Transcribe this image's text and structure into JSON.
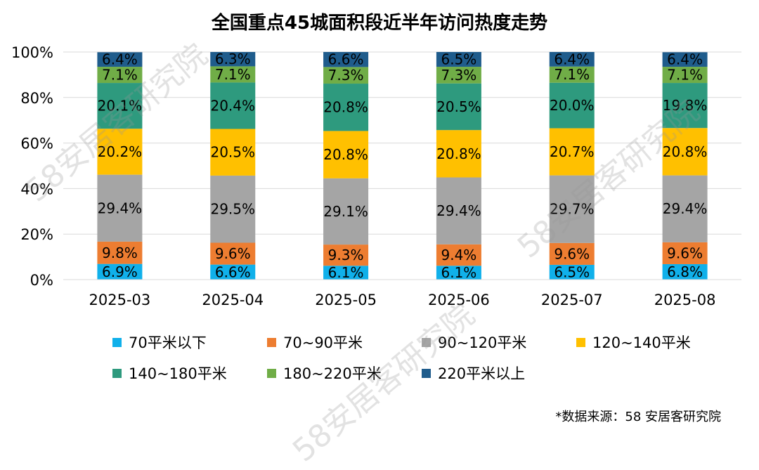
{
  "chart_data": {
    "type": "bar",
    "stacked": true,
    "title": "全国重点45城面积段近半年访问热度走势",
    "categories": [
      "2025-03",
      "2025-04",
      "2025-05",
      "2025-06",
      "2025-07",
      "2025-08"
    ],
    "y_ticks": [
      "0%",
      "20%",
      "40%",
      "60%",
      "80%",
      "100%"
    ],
    "ylim": [
      0,
      100
    ],
    "series": [
      {
        "name": "70平米以下",
        "color": "#10b0ea",
        "values": [
          6.9,
          6.6,
          6.1,
          6.1,
          6.5,
          6.8
        ],
        "labels": [
          "6.9%",
          "6.6%",
          "6.1%",
          "6.1%",
          "6.5%",
          "6.8%"
        ]
      },
      {
        "name": "70~90平米",
        "color": "#ed7d31",
        "values": [
          9.8,
          9.6,
          9.3,
          9.4,
          9.6,
          9.6
        ],
        "labels": [
          "9.8%",
          "9.6%",
          "9.3%",
          "9.4%",
          "9.6%",
          "9.6%"
        ]
      },
      {
        "name": "90~120平米",
        "color": "#a5a5a5",
        "values": [
          29.4,
          29.5,
          29.1,
          29.4,
          29.7,
          29.4
        ],
        "labels": [
          "29.4%",
          "29.5%",
          "29.1%",
          "29.4%",
          "29.7%",
          "29.4%"
        ]
      },
      {
        "name": "120~140平米",
        "color": "#ffc000",
        "values": [
          20.2,
          20.5,
          20.8,
          20.8,
          20.7,
          20.8
        ],
        "labels": [
          "20.2%",
          "20.5%",
          "20.8%",
          "20.8%",
          "20.7%",
          "20.8%"
        ]
      },
      {
        "name": "140~180平米",
        "color": "#2e9a7e",
        "values": [
          20.1,
          20.4,
          20.8,
          20.5,
          20.0,
          19.8
        ],
        "labels": [
          "20.1%",
          "20.4%",
          "20.8%",
          "20.5%",
          "20.0%",
          "19.8%"
        ]
      },
      {
        "name": "180~220平米",
        "color": "#70ad47",
        "values": [
          7.1,
          7.1,
          7.3,
          7.3,
          7.1,
          7.1
        ],
        "labels": [
          "7.1%",
          "7.1%",
          "7.3%",
          "7.3%",
          "7.1%",
          "7.1%"
        ]
      },
      {
        "name": "220平米以上",
        "color": "#1f5c8c",
        "values": [
          6.4,
          6.3,
          6.6,
          6.5,
          6.4,
          6.4
        ],
        "labels": [
          "6.4%",
          "6.3%",
          "6.6%",
          "6.5%",
          "6.4%",
          "6.4%"
        ]
      }
    ],
    "legend_position": "bottom"
  },
  "source_note": "*数据来源：58 安居客研究院",
  "watermark_text": "58安居客研究院"
}
